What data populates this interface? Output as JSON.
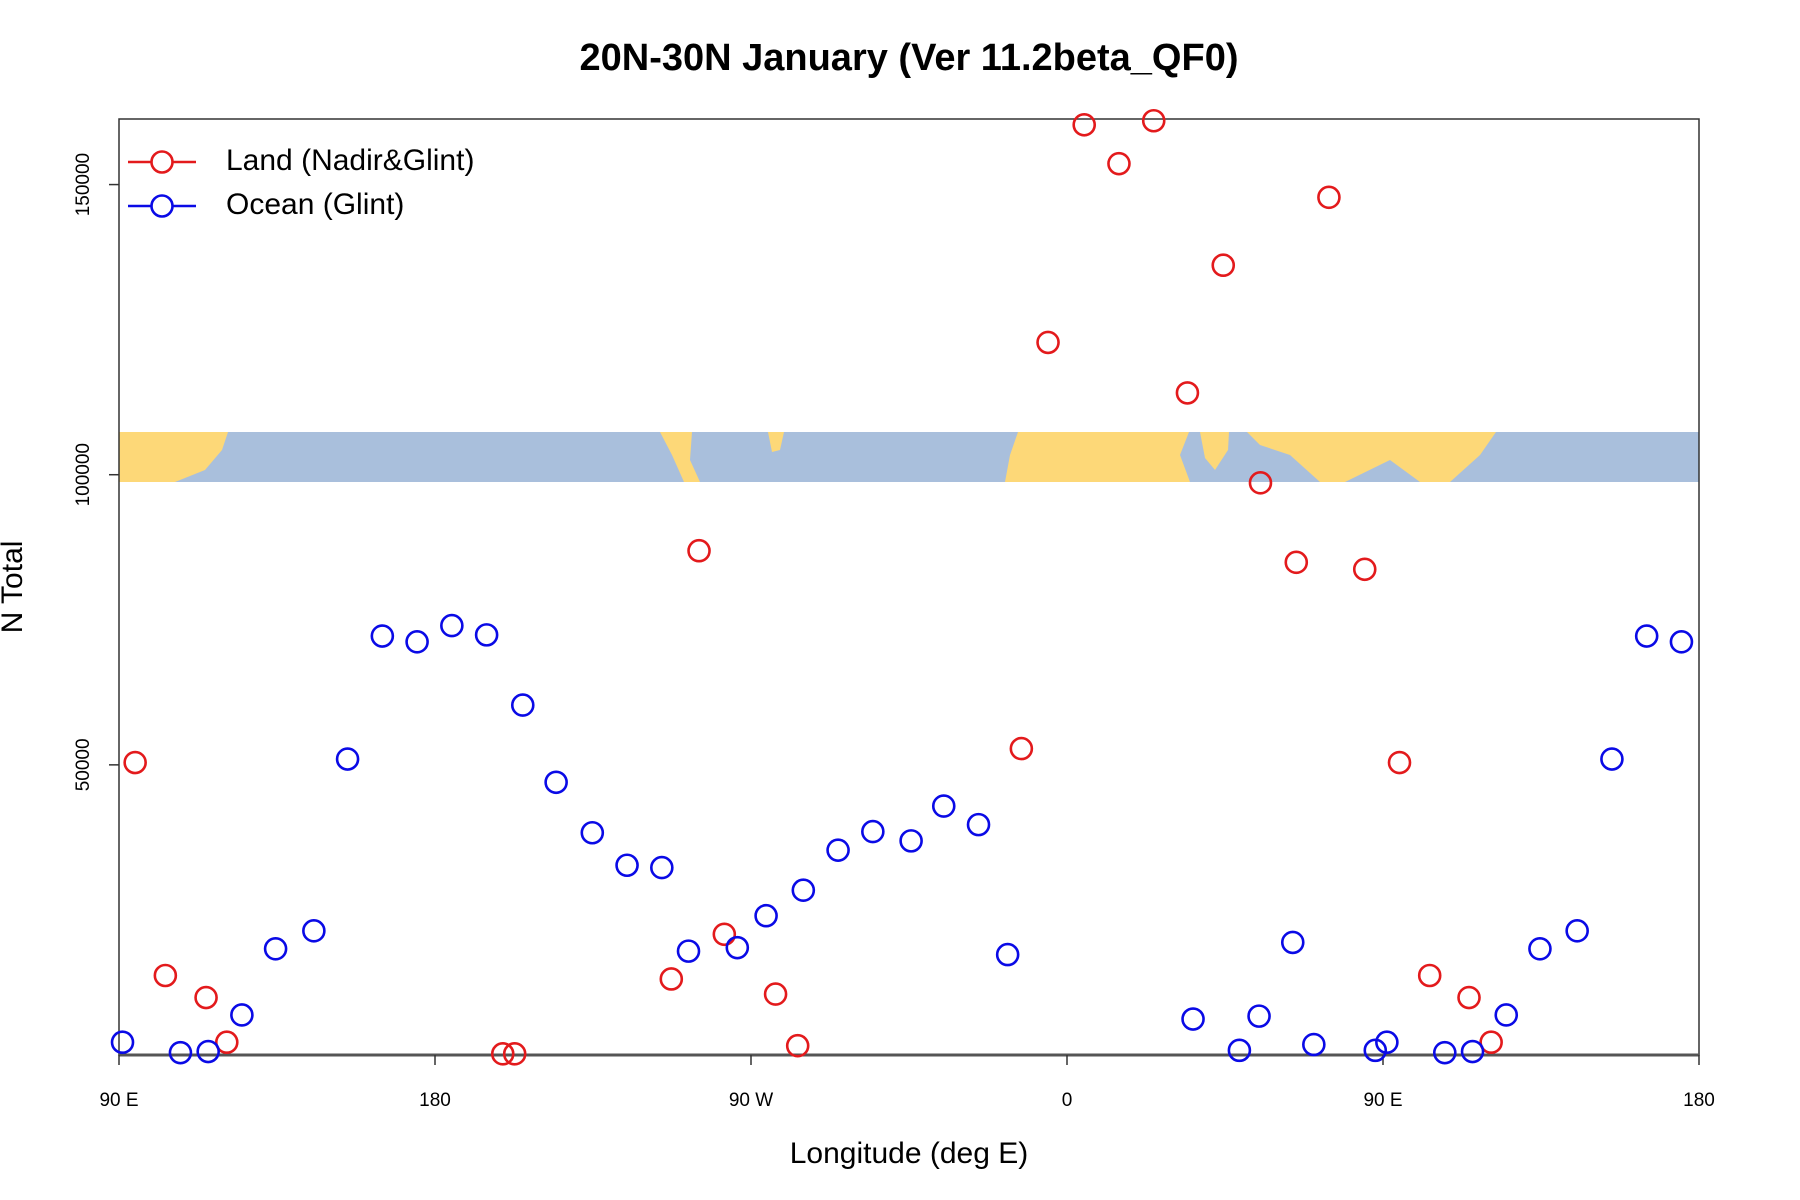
{
  "chart_data": {
    "type": "scatter",
    "title": "20N-30N January (Ver 11.2beta_QF0)",
    "xlabel": "Longitude (deg E)",
    "ylabel": "N Total",
    "xlim": [
      90,
      540
    ],
    "ylim": [
      0,
      161300
    ],
    "xticks": [
      {
        "value": 90,
        "label": "90 E"
      },
      180,
      {
        "value": 270,
        "label": "90 W"
      },
      {
        "value": 360,
        "label": "0"
      },
      {
        "value": 450,
        "label": "90 E"
      },
      {
        "value": 540,
        "label": "180"
      }
    ],
    "yticks": [
      50000,
      100000,
      150000
    ],
    "legend": "top-left",
    "series": [
      {
        "name": "Land (Nadir&Glint)",
        "color": "#e31a1c",
        "x": [
          94.6,
          103.2,
          114.8,
          120.7,
          199.3,
          202.7,
          247.3,
          255.2,
          262.4,
          277.0,
          283.3,
          347.0,
          354.6,
          364.9,
          374.8,
          384.7,
          394.3,
          404.5,
          415.1,
          425.3,
          434.6,
          444.8,
          454.7,
          463.3,
          474.5,
          480.8
        ],
        "values": [
          50400,
          13700,
          9900,
          2200,
          200,
          200,
          13100,
          86900,
          20800,
          10500,
          1600,
          52800,
          122800,
          160300,
          153600,
          161000,
          114100,
          136100,
          98600,
          84900,
          147800,
          83700,
          50400,
          13700,
          9900,
          2200
        ]
      },
      {
        "name": "Ocean (Glint)",
        "color": "#0a0ae6",
        "x": [
          91.0,
          107.5,
          115.4,
          125.0,
          134.6,
          145.5,
          155.1,
          165.0,
          174.9,
          184.8,
          194.7,
          205.0,
          214.5,
          224.8,
          234.7,
          244.6,
          252.2,
          266.1,
          274.3,
          284.9,
          294.8,
          304.7,
          315.6,
          324.9,
          334.8,
          343.1,
          395.9,
          409.1,
          414.7,
          424.3,
          430.3,
          447.8,
          451.1,
          467.6,
          475.5,
          485.1,
          494.7,
          505.3,
          515.2,
          525.1,
          535.0
        ],
        "values": [
          2200,
          400,
          600,
          6900,
          18300,
          21400,
          51000,
          72200,
          71200,
          74000,
          72400,
          60300,
          47000,
          38300,
          32700,
          32300,
          17900,
          18500,
          24000,
          28400,
          35300,
          38500,
          36900,
          42900,
          39700,
          17300,
          6200,
          800,
          6700,
          19400,
          1800,
          800,
          2200,
          400,
          600,
          6900,
          18300,
          21400,
          51000,
          72200,
          71200
        ]
      }
    ]
  }
}
